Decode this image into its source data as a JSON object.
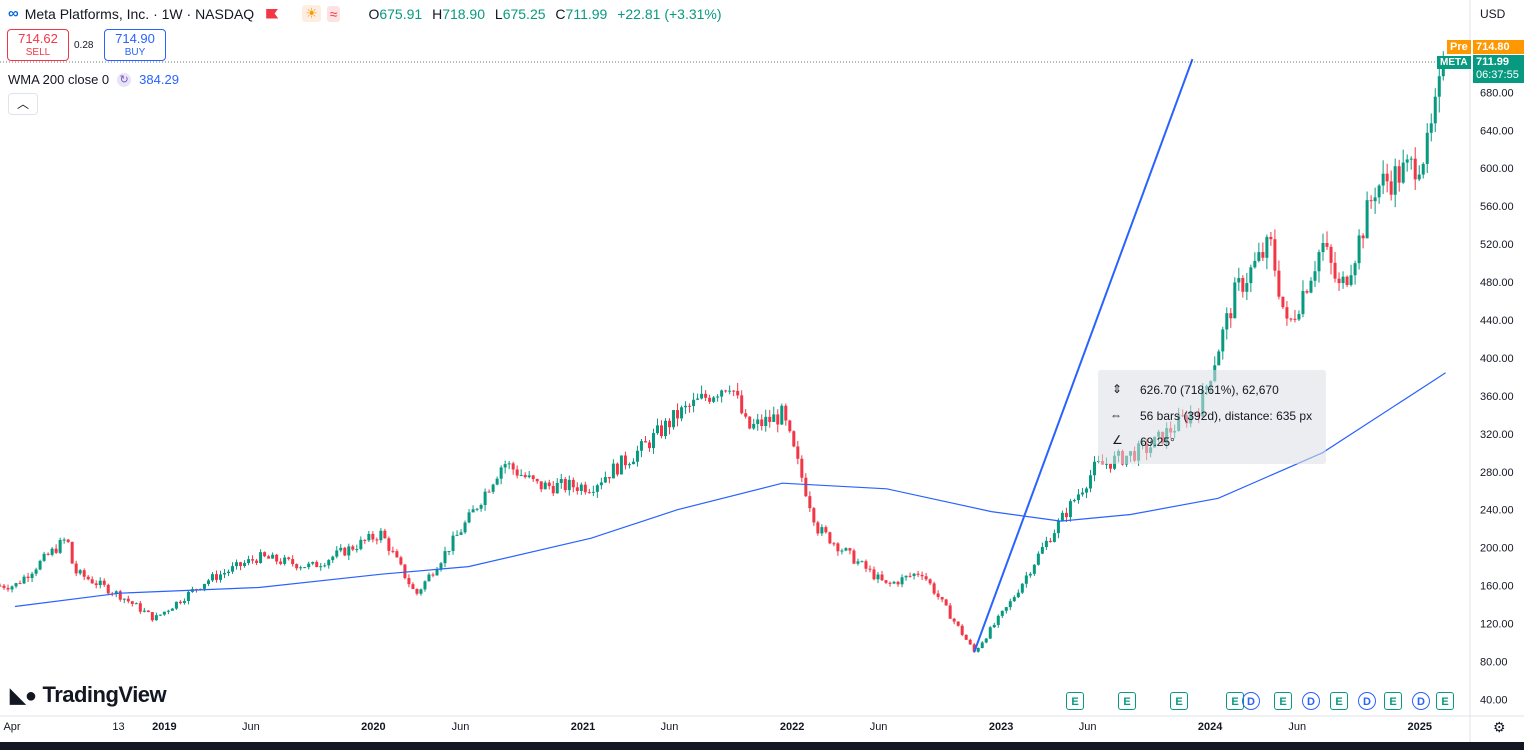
{
  "header": {
    "symbol_title": "Meta Platforms, Inc. · 1W · NASDAQ",
    "ohlc": [
      {
        "k": "O",
        "v": "675.91"
      },
      {
        "k": "H",
        "v": "718.90"
      },
      {
        "k": "L",
        "v": "675.25"
      },
      {
        "k": "C",
        "v": "711.99"
      }
    ],
    "change": "+22.81 (+3.31%)"
  },
  "trade": {
    "sell_price": "714.62",
    "sell_label": "SELL",
    "spread": "0.28",
    "buy_price": "714.90",
    "buy_label": "BUY"
  },
  "indicator": {
    "label": "WMA 200 close 0",
    "value": "384.29"
  },
  "currency": "USD",
  "price_tags": {
    "pre_label": "Pre",
    "pre_price": "714.80",
    "symbol": "META",
    "last_price": "711.99",
    "countdown": "06:37:55"
  },
  "measure": {
    "line1": "626.70 (718.61%), 62,670",
    "line2": "56 bars (392d), distance: 635 px",
    "line3": "69.25°"
  },
  "logo_text": "TradingView",
  "colors": {
    "up": "#089981",
    "down": "#f23645",
    "wma": "#2962ff",
    "trend": "#2962ff"
  },
  "y_axis_ticks": [
    "680.00",
    "640.00",
    "600.00",
    "560.00",
    "520.00",
    "480.00",
    "440.00",
    "400.00",
    "360.00",
    "320.00",
    "280.00",
    "240.00",
    "200.00",
    "160.00",
    "120.00",
    "80.00",
    "40.00"
  ],
  "x_axis_labels": [
    {
      "t": "Apr",
      "bold": false
    },
    {
      "t": "13",
      "bold": false
    },
    {
      "t": "2019",
      "bold": true
    },
    {
      "t": "Jun",
      "bold": false
    },
    {
      "t": "2020",
      "bold": true
    },
    {
      "t": "Jun",
      "bold": false
    },
    {
      "t": "2021",
      "bold": true
    },
    {
      "t": "Jun",
      "bold": false
    },
    {
      "t": "2022",
      "bold": true
    },
    {
      "t": "Jun",
      "bold": false
    },
    {
      "t": "2023",
      "bold": true
    },
    {
      "t": "Jun",
      "bold": false
    },
    {
      "t": "2024",
      "bold": true
    },
    {
      "t": "Jun",
      "bold": false
    },
    {
      "t": "2025",
      "bold": true
    }
  ],
  "events": [
    "E",
    "E",
    "E",
    "E",
    "D",
    "E",
    "D",
    "E",
    "D",
    "E",
    "D",
    "E"
  ],
  "chart_data": {
    "type": "candlestick",
    "interval": "1W",
    "ylim": [
      40,
      715
    ],
    "close_path": [
      {
        "date": "2018-04",
        "close": 160
      },
      {
        "date": "2018-07",
        "close": 210
      },
      {
        "date": "2018-07-27",
        "close": 175
      },
      {
        "date": "2018-10",
        "close": 150
      },
      {
        "date": "2018-12",
        "close": 125
      },
      {
        "date": "2019-03",
        "close": 165
      },
      {
        "date": "2019-06",
        "close": 190
      },
      {
        "date": "2019-09",
        "close": 180
      },
      {
        "date": "2020-01",
        "close": 215
      },
      {
        "date": "2020-03",
        "close": 150
      },
      {
        "date": "2020-06",
        "close": 230
      },
      {
        "date": "2020-08",
        "close": 290
      },
      {
        "date": "2020-10",
        "close": 265
      },
      {
        "date": "2021-01",
        "close": 265
      },
      {
        "date": "2021-04",
        "close": 305
      },
      {
        "date": "2021-06",
        "close": 340
      },
      {
        "date": "2021-09",
        "close": 375
      },
      {
        "date": "2021-10",
        "close": 325
      },
      {
        "date": "2021-12",
        "close": 340
      },
      {
        "date": "2022-02",
        "close": 220
      },
      {
        "date": "2022-04",
        "close": 190
      },
      {
        "date": "2022-06",
        "close": 160
      },
      {
        "date": "2022-08",
        "close": 175
      },
      {
        "date": "2022-11",
        "close": 90
      },
      {
        "date": "2023-01",
        "close": 140
      },
      {
        "date": "2023-03",
        "close": 200
      },
      {
        "date": "2023-06",
        "close": 285
      },
      {
        "date": "2023-09",
        "close": 305
      },
      {
        "date": "2023-12",
        "close": 350
      },
      {
        "date": "2024-02",
        "close": 470
      },
      {
        "date": "2024-04",
        "close": 520
      },
      {
        "date": "2024-05",
        "close": 430
      },
      {
        "date": "2024-07",
        "close": 520
      },
      {
        "date": "2024-08",
        "close": 470
      },
      {
        "date": "2024-09",
        "close": 520
      },
      {
        "date": "2024-10",
        "close": 580
      },
      {
        "date": "2024-12",
        "close": 600
      },
      {
        "date": "2025-01",
        "close": 620
      },
      {
        "date": "2025-02",
        "close": 711.99
      }
    ],
    "wma_200": [
      {
        "date": "2018-04",
        "value": 138
      },
      {
        "date": "2018-10",
        "value": 152
      },
      {
        "date": "2019-06",
        "value": 158
      },
      {
        "date": "2020-01",
        "value": 172
      },
      {
        "date": "2020-06",
        "value": 180
      },
      {
        "date": "2021-01",
        "value": 210
      },
      {
        "date": "2021-06",
        "value": 240
      },
      {
        "date": "2021-12",
        "value": 268
      },
      {
        "date": "2022-06",
        "value": 262
      },
      {
        "date": "2022-12",
        "value": 238
      },
      {
        "date": "2023-04",
        "value": 228
      },
      {
        "date": "2023-08",
        "value": 235
      },
      {
        "date": "2024-01",
        "value": 252
      },
      {
        "date": "2024-07",
        "value": 300
      },
      {
        "date": "2025-02",
        "value": 384.29
      }
    ],
    "trend_line": [
      {
        "date": "2022-11",
        "value": 90
      },
      {
        "date": "2023-12",
        "value": 715
      }
    ]
  }
}
